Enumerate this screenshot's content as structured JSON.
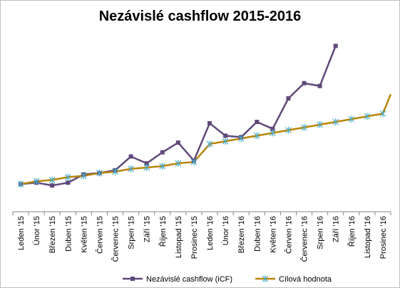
{
  "chart_data": {
    "type": "line",
    "title": "Nezávislé cashflow 2015-2016",
    "categories": [
      "Leden '15",
      "Únor '15",
      "Březen '15",
      "Duben '15",
      "Květen '15",
      "Červen '15",
      "Červenec '15",
      "Srpen '15",
      "Září '15",
      "Říjen '15",
      "Listopad '15",
      "Prosinec '15",
      "Leden '16",
      "Únor '16",
      "Březen '16",
      "Duben '16",
      "Květen '16",
      "Červen '16",
      "Červenec '16",
      "Srpen '16",
      "Září '16",
      "Říjen '16",
      "Listopad '16",
      "Prosinec '16"
    ],
    "series": [
      {
        "name": "Nezávislé cashflow (iCF)",
        "color": "#60497a",
        "marker": "square",
        "values": [
          0,
          1,
          -1,
          1,
          7,
          8,
          10,
          20,
          15,
          23,
          30,
          17,
          44,
          35,
          34,
          45,
          40,
          62,
          73,
          71,
          100,
          null,
          null,
          null
        ]
      },
      {
        "name": "Cílová hodnota",
        "color": "#b8860b",
        "marker": "asterisk",
        "values": [
          0,
          2,
          3,
          5,
          6,
          8,
          9,
          11,
          12,
          13,
          15,
          16,
          29,
          31,
          33,
          35,
          37,
          39,
          41,
          43,
          45,
          47,
          49,
          51
        ]
      }
    ],
    "extra_segment_end": 65,
    "ylim": [
      -20,
      110
    ],
    "grid": false,
    "legend": "bottom"
  }
}
